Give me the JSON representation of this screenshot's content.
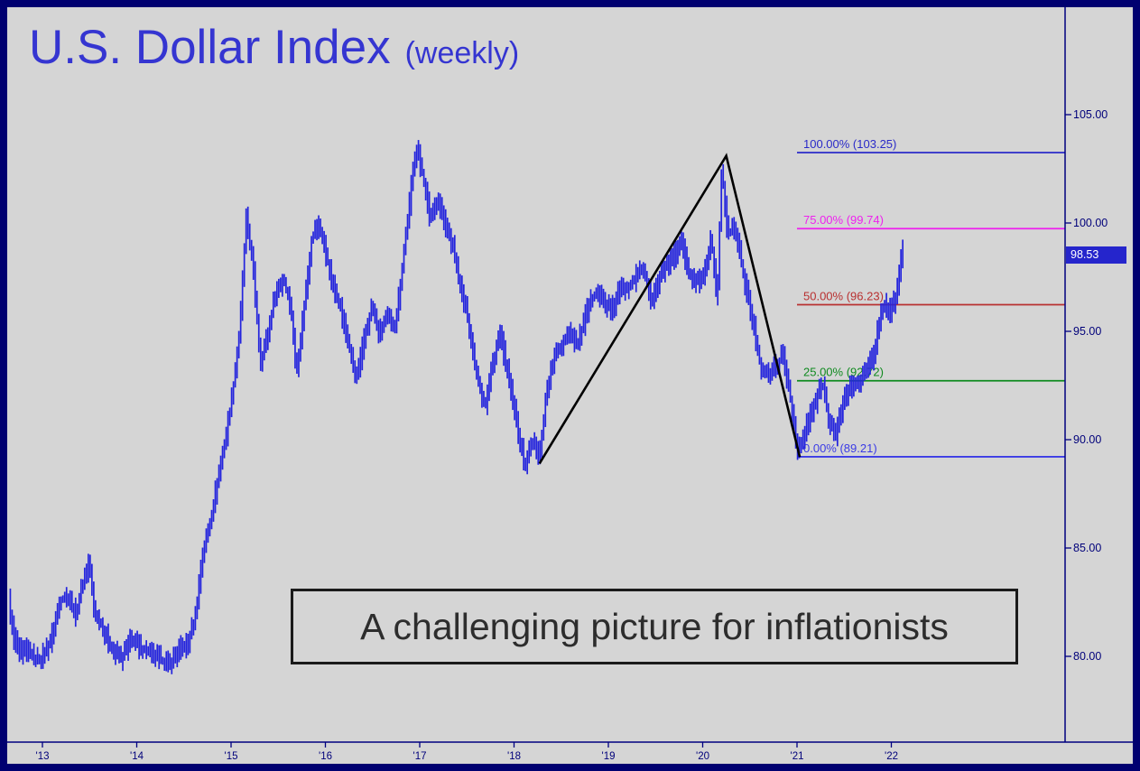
{
  "header": {
    "title": "U.S. Dollar Index",
    "qualifier": "(weekly)"
  },
  "annotation": {
    "text": "A challenging picture for inflationists"
  },
  "price_tag": {
    "value": "98.53"
  },
  "chart_data": {
    "type": "bar",
    "title": "U.S. Dollar Index (weekly)",
    "instrument": "U.S. Dollar Index",
    "timeframe": "weekly",
    "xlabel": "",
    "ylabel": "",
    "grid": false,
    "legend": "none",
    "y_axis_side": "right",
    "xlim": [
      2012.6,
      2022.7
    ],
    "ylim": [
      76.5,
      107.0
    ],
    "x_range_years": [
      2012.65,
      2022.13
    ],
    "last_price": 98.53,
    "y_axis": {
      "ticks": [
        {
          "label": "105.00",
          "value": 105
        },
        {
          "label": "100.00",
          "value": 100
        },
        {
          "label": "95.00",
          "value": 95
        },
        {
          "label": "90.00",
          "value": 90
        },
        {
          "label": "85.00",
          "value": 85
        },
        {
          "label": "80.00",
          "value": 80
        }
      ]
    },
    "x_axis": {
      "ticks": [
        {
          "label": "'13",
          "year": 2013
        },
        {
          "label": "'14",
          "year": 2014
        },
        {
          "label": "'15",
          "year": 2015
        },
        {
          "label": "'16",
          "year": 2016
        },
        {
          "label": "'17",
          "year": 2017
        },
        {
          "label": "'18",
          "year": 2018
        },
        {
          "label": "'19",
          "year": 2019
        },
        {
          "label": "'20",
          "year": 2020
        },
        {
          "label": "'21",
          "year": 2021
        },
        {
          "label": "'22",
          "year": 2022
        }
      ]
    },
    "series": [
      {
        "name": "DXY weekly price (approx anchor points [year, index value])",
        "points": [
          [
            2012.65,
            82.6
          ],
          [
            2012.7,
            81.0
          ],
          [
            2012.78,
            80.1
          ],
          [
            2012.85,
            80.3
          ],
          [
            2012.92,
            79.9
          ],
          [
            2013.0,
            79.9
          ],
          [
            2013.1,
            80.8
          ],
          [
            2013.2,
            82.6
          ],
          [
            2013.28,
            82.8
          ],
          [
            2013.36,
            81.9
          ],
          [
            2013.44,
            83.4
          ],
          [
            2013.5,
            84.4
          ],
          [
            2013.56,
            82.0
          ],
          [
            2013.65,
            81.3
          ],
          [
            2013.75,
            80.3
          ],
          [
            2013.85,
            79.9
          ],
          [
            2013.95,
            80.8
          ],
          [
            2014.05,
            80.4
          ],
          [
            2014.15,
            80.1
          ],
          [
            2014.25,
            79.9
          ],
          [
            2014.35,
            79.6
          ],
          [
            2014.45,
            80.3
          ],
          [
            2014.55,
            80.6
          ],
          [
            2014.63,
            81.8
          ],
          [
            2014.7,
            84.6
          ],
          [
            2014.78,
            86.0
          ],
          [
            2014.86,
            88.0
          ],
          [
            2014.94,
            89.8
          ],
          [
            2015.02,
            92.0
          ],
          [
            2015.1,
            95.0
          ],
          [
            2015.17,
            100.2
          ],
          [
            2015.24,
            98.0
          ],
          [
            2015.32,
            93.6
          ],
          [
            2015.4,
            94.9
          ],
          [
            2015.48,
            96.8
          ],
          [
            2015.56,
            97.4
          ],
          [
            2015.64,
            96.2
          ],
          [
            2015.7,
            93.1
          ],
          [
            2015.78,
            96.0
          ],
          [
            2015.86,
            99.2
          ],
          [
            2015.93,
            100.0
          ],
          [
            2016.0,
            98.9
          ],
          [
            2016.08,
            97.2
          ],
          [
            2016.16,
            96.3
          ],
          [
            2016.24,
            94.7
          ],
          [
            2016.33,
            92.7
          ],
          [
            2016.42,
            94.6
          ],
          [
            2016.5,
            96.1
          ],
          [
            2016.58,
            94.9
          ],
          [
            2016.66,
            95.6
          ],
          [
            2016.75,
            95.3
          ],
          [
            2016.83,
            98.2
          ],
          [
            2016.91,
            101.3
          ],
          [
            2016.97,
            103.6
          ],
          [
            2017.05,
            102.0
          ],
          [
            2017.12,
            100.2
          ],
          [
            2017.2,
            101.2
          ],
          [
            2017.28,
            99.9
          ],
          [
            2017.36,
            98.9
          ],
          [
            2017.44,
            97.0
          ],
          [
            2017.52,
            95.6
          ],
          [
            2017.6,
            93.3
          ],
          [
            2017.7,
            91.5
          ],
          [
            2017.78,
            93.5
          ],
          [
            2017.86,
            94.9
          ],
          [
            2017.94,
            93.1
          ],
          [
            2018.02,
            91.2
          ],
          [
            2018.12,
            88.8
          ],
          [
            2018.2,
            89.9
          ],
          [
            2018.28,
            89.3
          ],
          [
            2018.36,
            92.4
          ],
          [
            2018.44,
            93.8
          ],
          [
            2018.52,
            94.4
          ],
          [
            2018.6,
            95.1
          ],
          [
            2018.68,
            94.3
          ],
          [
            2018.78,
            95.9
          ],
          [
            2018.88,
            96.9
          ],
          [
            2018.96,
            96.4
          ],
          [
            2019.04,
            95.9
          ],
          [
            2019.12,
            96.9
          ],
          [
            2019.22,
            97.1
          ],
          [
            2019.3,
            97.5
          ],
          [
            2019.38,
            97.9
          ],
          [
            2019.46,
            96.4
          ],
          [
            2019.54,
            97.3
          ],
          [
            2019.62,
            98.1
          ],
          [
            2019.7,
            98.4
          ],
          [
            2019.78,
            99.1
          ],
          [
            2019.86,
            97.7
          ],
          [
            2019.94,
            97.3
          ],
          [
            2020.02,
            97.6
          ],
          [
            2020.1,
            99.4
          ],
          [
            2020.16,
            96.2
          ],
          [
            2020.21,
            102.6
          ],
          [
            2020.27,
            99.5
          ],
          [
            2020.35,
            99.8
          ],
          [
            2020.43,
            97.9
          ],
          [
            2020.5,
            96.3
          ],
          [
            2020.56,
            95.0
          ],
          [
            2020.62,
            93.4
          ],
          [
            2020.7,
            92.9
          ],
          [
            2020.78,
            93.4
          ],
          [
            2020.86,
            93.9
          ],
          [
            2020.93,
            92.2
          ],
          [
            2021.0,
            89.8
          ],
          [
            2021.04,
            89.5
          ],
          [
            2021.12,
            90.8
          ],
          [
            2021.2,
            91.7
          ],
          [
            2021.28,
            92.6
          ],
          [
            2021.35,
            90.9
          ],
          [
            2021.42,
            90.1
          ],
          [
            2021.5,
            91.9
          ],
          [
            2021.58,
            92.5
          ],
          [
            2021.66,
            92.7
          ],
          [
            2021.74,
            93.1
          ],
          [
            2021.82,
            93.9
          ],
          [
            2021.88,
            95.5
          ],
          [
            2021.94,
            96.3
          ],
          [
            2022.0,
            95.8
          ],
          [
            2022.06,
            96.7
          ],
          [
            2022.13,
            98.9
          ]
        ]
      }
    ],
    "fib_retracement": {
      "anchor_low": 89.21,
      "anchor_high": 103.25,
      "start_year": 2021.0,
      "levels": [
        {
          "pct": 100,
          "value": 103.25,
          "label": "100.00% (103.25)",
          "color": "#2a2ac8"
        },
        {
          "pct": 75,
          "value": 99.74,
          "label": "75.00% (99.74)",
          "color": "#ee22ee"
        },
        {
          "pct": 50,
          "value": 96.23,
          "label": "50.00% (96.23)",
          "color": "#b83030"
        },
        {
          "pct": 25,
          "value": 92.72,
          "label": "25.00% (92.72)",
          "color": "#0f8a1f"
        },
        {
          "pct": 0,
          "value": 89.21,
          "label": "0.00% (89.21)",
          "color": "#3a3ae6"
        }
      ]
    },
    "trendline_abc": [
      [
        2018.27,
        88.9
      ],
      [
        2020.25,
        103.1
      ],
      [
        2021.03,
        89.2
      ]
    ],
    "colors": {
      "background": "#d5d5d5",
      "frame": "#000070",
      "bars": "#2323dd",
      "axis": "#000080",
      "title": "#3535d1",
      "trendline": "#000000",
      "price_tag_bg": "#2525cc",
      "price_tag_text": "#ffffff",
      "annotation_text": "#2d2d2d"
    }
  }
}
